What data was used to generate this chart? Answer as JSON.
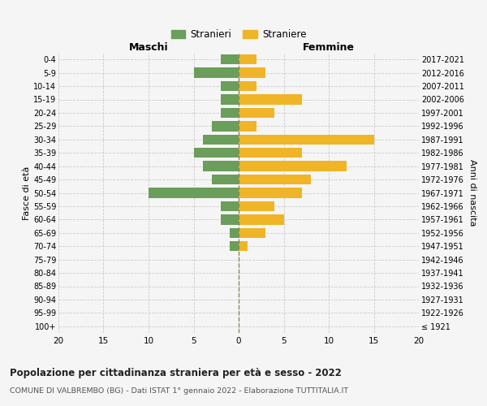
{
  "age_groups": [
    "100+",
    "95-99",
    "90-94",
    "85-89",
    "80-84",
    "75-79",
    "70-74",
    "65-69",
    "60-64",
    "55-59",
    "50-54",
    "45-49",
    "40-44",
    "35-39",
    "30-34",
    "25-29",
    "20-24",
    "15-19",
    "10-14",
    "5-9",
    "0-4"
  ],
  "birth_years": [
    "≤ 1921",
    "1922-1926",
    "1927-1931",
    "1932-1936",
    "1937-1941",
    "1942-1946",
    "1947-1951",
    "1952-1956",
    "1957-1961",
    "1962-1966",
    "1967-1971",
    "1972-1976",
    "1977-1981",
    "1982-1986",
    "1987-1991",
    "1992-1996",
    "1997-2001",
    "2002-2006",
    "2007-2011",
    "2012-2016",
    "2017-2021"
  ],
  "maschi": [
    0,
    0,
    0,
    0,
    0,
    0,
    1,
    1,
    2,
    2,
    10,
    3,
    4,
    5,
    4,
    3,
    2,
    2,
    2,
    5,
    2
  ],
  "femmine": [
    0,
    0,
    0,
    0,
    0,
    0,
    1,
    3,
    5,
    4,
    7,
    8,
    12,
    7,
    15,
    2,
    4,
    7,
    2,
    3,
    2
  ],
  "male_color": "#6a9e5a",
  "female_color": "#f0b427",
  "title": "Popolazione per cittadinanza straniera per età e sesso - 2022",
  "subtitle": "COMUNE DI VALBREMBO (BG) - Dati ISTAT 1° gennaio 2022 - Elaborazione TUTTITALIA.IT",
  "xlabel_left": "Maschi",
  "xlabel_right": "Femmine",
  "ylabel_left": "Fasce di età",
  "ylabel_right": "Anni di nascita",
  "legend_male": "Stranieri",
  "legend_female": "Straniere",
  "xlim": 20,
  "background_color": "#f5f5f5",
  "grid_color": "#cccccc"
}
